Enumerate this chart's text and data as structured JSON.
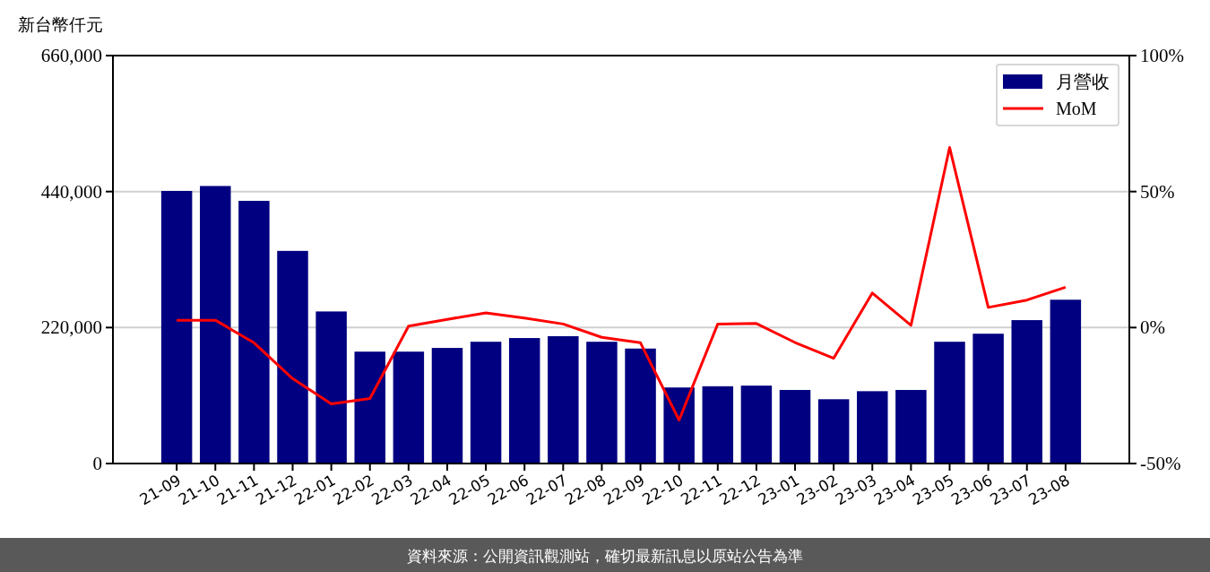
{
  "chart_data": {
    "type": "bar",
    "ylabel": "新台幣仟元",
    "categories": [
      "21-09",
      "21-10",
      "21-11",
      "21-12",
      "22-01",
      "22-02",
      "22-03",
      "22-04",
      "22-05",
      "22-06",
      "22-07",
      "22-08",
      "22-09",
      "22-10",
      "22-11",
      "22-12",
      "23-01",
      "23-02",
      "23-03",
      "23-04",
      "23-05",
      "23-06",
      "23-07",
      "23-08"
    ],
    "series": [
      {
        "name": "月營收",
        "color": "#000080",
        "values": [
          441000,
          449000,
          425000,
          344000,
          246000,
          181000,
          181000,
          187000,
          197000,
          203000,
          206000,
          197000,
          186000,
          123000,
          125000,
          126000,
          119000,
          104000,
          117000,
          119000,
          197000,
          210000,
          232000,
          265000
        ]
      },
      {
        "name": "MoM",
        "type": "line",
        "axis": "y2",
        "color": "#ff0000",
        "values": [
          2.7,
          2.7,
          -5.6,
          -18.8,
          -28.1,
          -26.1,
          0.5,
          3.0,
          5.4,
          3.5,
          1.3,
          -3.6,
          -5.6,
          -34.0,
          1.3,
          1.5,
          -5.5,
          -11.3,
          12.7,
          0.8,
          66.2,
          7.4,
          10.1,
          14.8
        ]
      }
    ],
    "ylim": [
      0,
      660000
    ],
    "yticks": [
      0,
      {
        "value": 220000,
        "label": "220,000"
      },
      {
        "value": 440000,
        "label": "440,000"
      },
      {
        "value": 660000,
        "label": "660,000"
      }
    ],
    "y2lim": [
      -50,
      100
    ],
    "y2ticks": [
      {
        "value": -50,
        "label": "-50%"
      },
      {
        "value": 0,
        "label": "0%"
      },
      {
        "value": 50,
        "label": "50%"
      },
      {
        "value": 100,
        "label": "100%"
      }
    ],
    "grid": "y",
    "legend": "top right",
    "annotations": [
      "資料來源：公開資訊觀測站，確切最新訊息以原站公告為準"
    ]
  }
}
